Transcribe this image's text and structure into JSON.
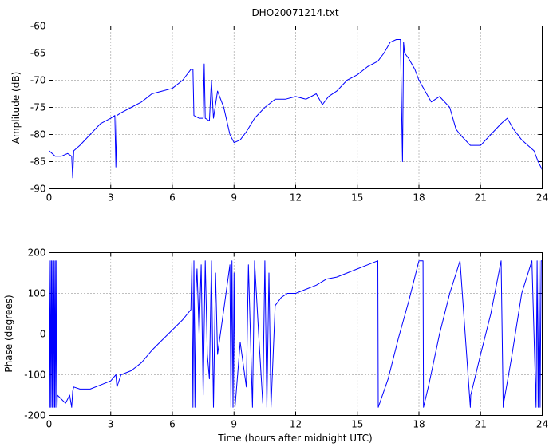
{
  "chart_data": [
    {
      "type": "line",
      "title": "DHO20071214.txt",
      "xlabel": "",
      "ylabel": "Amplitude (dB)",
      "xlim": [
        0,
        24
      ],
      "ylim": [
        -90,
        -60
      ],
      "xticks": [
        0,
        3,
        6,
        9,
        12,
        15,
        18,
        21,
        24
      ],
      "yticks": [
        -90,
        -85,
        -80,
        -75,
        -70,
        -65,
        -60
      ],
      "grid": true,
      "series": [
        {
          "color": "#0000ff",
          "x": [
            0,
            0.3,
            0.6,
            0.9,
            1.1,
            1.15,
            1.2,
            1.5,
            2.0,
            2.5,
            3.0,
            3.2,
            3.25,
            3.3,
            3.5,
            4.0,
            4.5,
            5.0,
            5.5,
            6.0,
            6.5,
            6.9,
            7.0,
            7.05,
            7.3,
            7.5,
            7.55,
            7.6,
            7.8,
            7.9,
            8.0,
            8.2,
            8.5,
            8.8,
            9.0,
            9.3,
            9.6,
            10.0,
            10.5,
            11.0,
            11.5,
            12.0,
            12.5,
            13.0,
            13.3,
            13.6,
            14.0,
            14.5,
            15.0,
            15.5,
            16.0,
            16.3,
            16.6,
            16.9,
            17.1,
            17.2,
            17.25,
            17.3,
            17.5,
            17.8,
            18.0,
            18.3,
            18.6,
            19.0,
            19.5,
            19.8,
            20.0,
            20.5,
            21.0,
            21.5,
            22.0,
            22.3,
            22.6,
            23.0,
            23.3,
            23.6,
            23.8,
            24.0
          ],
          "values": [
            -83,
            -84,
            -84,
            -83.5,
            -84,
            -88,
            -83,
            -82,
            -80,
            -78,
            -77,
            -76.5,
            -86,
            -76.5,
            -76,
            -75,
            -74,
            -72.5,
            -72,
            -71.5,
            -70,
            -68,
            -68,
            -76.5,
            -77,
            -77,
            -67,
            -77,
            -77.5,
            -70,
            -77,
            -72,
            -75,
            -80,
            -81.5,
            -81,
            -79.5,
            -77,
            -75,
            -73.5,
            -73.5,
            -73,
            -73.5,
            -72.5,
            -74.5,
            -73,
            -72,
            -70,
            -69,
            -67.5,
            -66.5,
            -65,
            -63,
            -62.5,
            -62.5,
            -85,
            -63,
            -65,
            -66,
            -68,
            -70,
            -72,
            -74,
            -73,
            -75,
            -79,
            -80,
            -82,
            -82,
            -80,
            -78,
            -77,
            -79,
            -81,
            -82,
            -83,
            -85,
            -86.5
          ]
        }
      ]
    },
    {
      "type": "line",
      "title": "",
      "xlabel": "Time (hours after midnight UTC)",
      "ylabel": "Phase (degrees)",
      "xlim": [
        0,
        24
      ],
      "ylim": [
        -200,
        200
      ],
      "xticks": [
        0,
        3,
        6,
        9,
        12,
        15,
        18,
        21,
        24
      ],
      "yticks": [
        -200,
        -100,
        0,
        100,
        200
      ],
      "grid": true,
      "series": [
        {
          "color": "#0000ff",
          "x": [
            0,
            0.03,
            0.06,
            0.09,
            0.12,
            0.15,
            0.18,
            0.21,
            0.24,
            0.27,
            0.3,
            0.33,
            0.36,
            0.39,
            0.4,
            0.6,
            0.8,
            1.0,
            1.1,
            1.15,
            1.2,
            1.5,
            2.0,
            2.5,
            3.0,
            3.25,
            3.3,
            3.5,
            4.0,
            4.5,
            5.0,
            5.5,
            6.0,
            6.5,
            6.9,
            6.95,
            7.0,
            7.05,
            7.1,
            7.15,
            7.2,
            7.25,
            7.3,
            7.4,
            7.5,
            7.6,
            7.7,
            7.8,
            7.9,
            8.0,
            8.1,
            8.2,
            8.5,
            8.8,
            8.85,
            8.9,
            8.95,
            9.0,
            9.05,
            9.3,
            9.6,
            9.7,
            9.9,
            10.0,
            10.2,
            10.4,
            10.5,
            10.6,
            10.7,
            10.8,
            11.0,
            11.3,
            11.6,
            12.0,
            12.5,
            13.0,
            13.5,
            14.0,
            14.5,
            15.0,
            15.5,
            16.0,
            16.02,
            16.5,
            17.0,
            17.5,
            18.0,
            18.2,
            18.22,
            18.5,
            19.0,
            19.5,
            20.0,
            20.5,
            20.52,
            21.0,
            21.5,
            22.0,
            22.1,
            22.12,
            22.5,
            23.0,
            23.5,
            23.7,
            23.75,
            23.8,
            23.85,
            23.9,
            23.95,
            24.0
          ],
          "values": [
            180,
            -180,
            180,
            -180,
            180,
            -180,
            180,
            -180,
            180,
            -180,
            180,
            -180,
            180,
            -180,
            -150,
            -160,
            -170,
            -150,
            -180,
            -140,
            -130,
            -135,
            -135,
            -125,
            -115,
            -100,
            -130,
            -100,
            -90,
            -70,
            -40,
            -15,
            10,
            35,
            60,
            180,
            -180,
            180,
            -180,
            100,
            160,
            80,
            0,
            170,
            -150,
            180,
            -50,
            -110,
            180,
            -180,
            150,
            -50,
            60,
            170,
            -180,
            180,
            -180,
            150,
            -180,
            -20,
            -130,
            170,
            -180,
            180,
            0,
            -170,
            180,
            -180,
            150,
            -180,
            70,
            90,
            100,
            100,
            110,
            120,
            135,
            140,
            150,
            160,
            170,
            180,
            -180,
            -110,
            -10,
            80,
            180,
            180,
            -180,
            -120,
            0,
            100,
            180,
            -180,
            -150,
            -50,
            50,
            180,
            -180,
            -170,
            -60,
            100,
            180,
            -180,
            180,
            -180,
            180,
            -180,
            180,
            180
          ]
        }
      ]
    }
  ]
}
